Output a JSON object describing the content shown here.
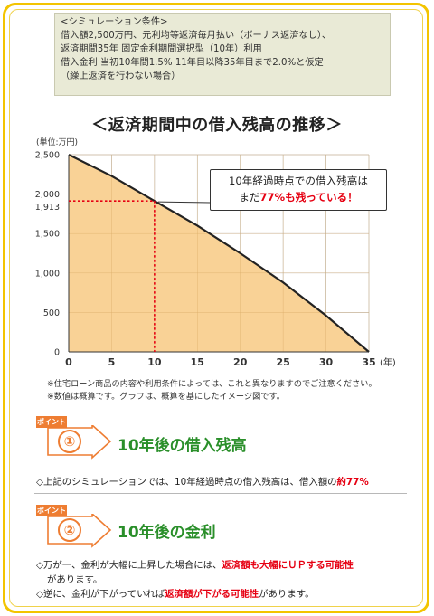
{
  "conditions": {
    "heading": "<シミュレーション条件>",
    "lines": [
      "借入額2,500万円、元利均等返済毎月払い（ボーナス返済なし）、",
      "返済期間35年 固定金利期間選択型（10年）利用",
      "借入金利 当初10年間1.5% 11年目以降35年目まで2.0%と仮定",
      "（繰上返済を行わない場合）"
    ]
  },
  "chart_title": "＜返済期間中の借入残高の推移＞",
  "chart_data": {
    "type": "area",
    "unit_label": "(単位:万円)",
    "x_unit": "(年)",
    "x": [
      0,
      5,
      10,
      15,
      20,
      25,
      30,
      35
    ],
    "values": [
      2500,
      2230,
      1913,
      1600,
      1250,
      880,
      460,
      0
    ],
    "xlim": [
      0,
      35
    ],
    "ylim": [
      0,
      2500
    ],
    "x_ticks": [
      0,
      5,
      10,
      15,
      20,
      25,
      30,
      35
    ],
    "x_tick_labels": [
      "0",
      "5",
      "10",
      "15",
      "20",
      "25",
      "30",
      "35"
    ],
    "y_ticks": [
      0,
      500,
      1000,
      1500,
      2000,
      2500
    ],
    "y_tick_labels": [
      "0",
      "500",
      "1,000",
      "1,500",
      "2,000",
      "2,500"
    ],
    "marker": {
      "x": 10,
      "y": 1913,
      "label": "1,913"
    },
    "grid": true,
    "fill_color": "#f8cd8b",
    "line_color": "#222222",
    "guide_color": "#e60012"
  },
  "callout": {
    "line1": "10年経過時点での借入残高は",
    "line2_pre": "まだ",
    "line2_red": "77%も残っている",
    "line2_post": "！"
  },
  "notes": [
    "※住宅ローン商品の内容や利用条件によっては、これと異なりますのでご注意ください。",
    "※数値は概算です。グラフは、概算を基にしたイメージ図です。"
  ],
  "points": [
    {
      "tag": "ポイント",
      "num": "①",
      "title": "10年後の借入残高"
    },
    {
      "tag": "ポイント",
      "num": "②",
      "title": "10年後の金利"
    }
  ],
  "point1_body": {
    "pre": "◇上記のシミュレーションでは、10年経過時点の借入残高は、借入額の",
    "red": "約77%"
  },
  "point2_body": {
    "l1_pre": "◇万が一、金利が大幅に上昇した場合には、",
    "l1_red": "返済額も大幅にＵＰする可能性",
    "l2": "があります。",
    "l3_pre": "◇逆に、金利が下がっていれば",
    "l3_red": "返済額が下がる可能性",
    "l3_post": "があります。"
  },
  "colors": {
    "frame": "#f3c400",
    "accent_orange": "#ee7d32",
    "title_green": "#2a8f2a",
    "red": "#e60012"
  }
}
